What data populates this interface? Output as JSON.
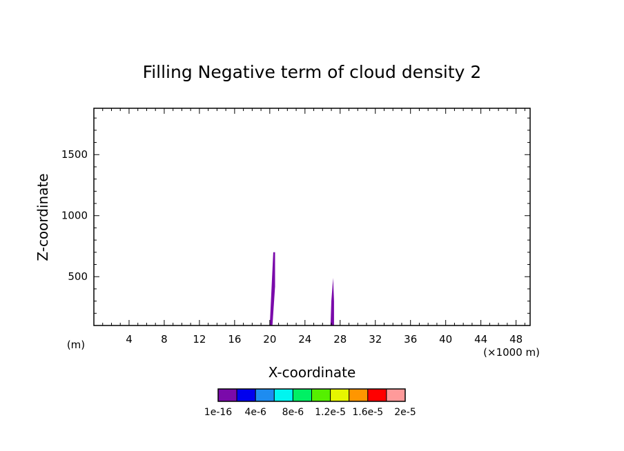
{
  "chart_data": {
    "type": "heatmap",
    "title": "Filling Negative term of cloud density 2",
    "xlabel": "X-coordinate",
    "ylabel": "Z-coordinate",
    "x_unit_note": "(×1000 m)",
    "y_unit_note": "(m)",
    "xlim": [
      0,
      49.6
    ],
    "ylim": [
      100,
      1880
    ],
    "x_major_ticks": [
      4,
      8,
      12,
      16,
      20,
      24,
      28,
      32,
      36,
      40,
      44,
      48
    ],
    "x_tick_labels": [
      "4",
      "8",
      "12",
      "16",
      "20",
      "24",
      "28",
      "32",
      "36",
      "40",
      "44",
      "48"
    ],
    "y_major_ticks": [
      500,
      1000,
      1500
    ],
    "y_tick_labels": [
      "500",
      "1000",
      "1500"
    ],
    "filled_regions": [
      {
        "level_index": 0,
        "points": [
          [
            20.0,
            100
          ],
          [
            20.4,
            700
          ],
          [
            20.6,
            700
          ],
          [
            20.6,
            420
          ],
          [
            20.3,
            100
          ]
        ]
      },
      {
        "level_index": 0,
        "points": [
          [
            26.9,
            100
          ],
          [
            27.0,
            300
          ],
          [
            27.2,
            490
          ],
          [
            27.3,
            300
          ],
          [
            27.3,
            100
          ]
        ]
      }
    ],
    "colorbar": {
      "levels": [
        "1e-16",
        "4e-6",
        "8e-6",
        "1.2e-5",
        "1.6e-5",
        "2e-5"
      ],
      "colors": [
        "#7a0aaa",
        "#0000ee",
        "#1e8cf0",
        "#00f5f0",
        "#00f064",
        "#55f000",
        "#e6f500",
        "#ff9600",
        "#ff0000",
        "#ff9a9a"
      ]
    }
  }
}
